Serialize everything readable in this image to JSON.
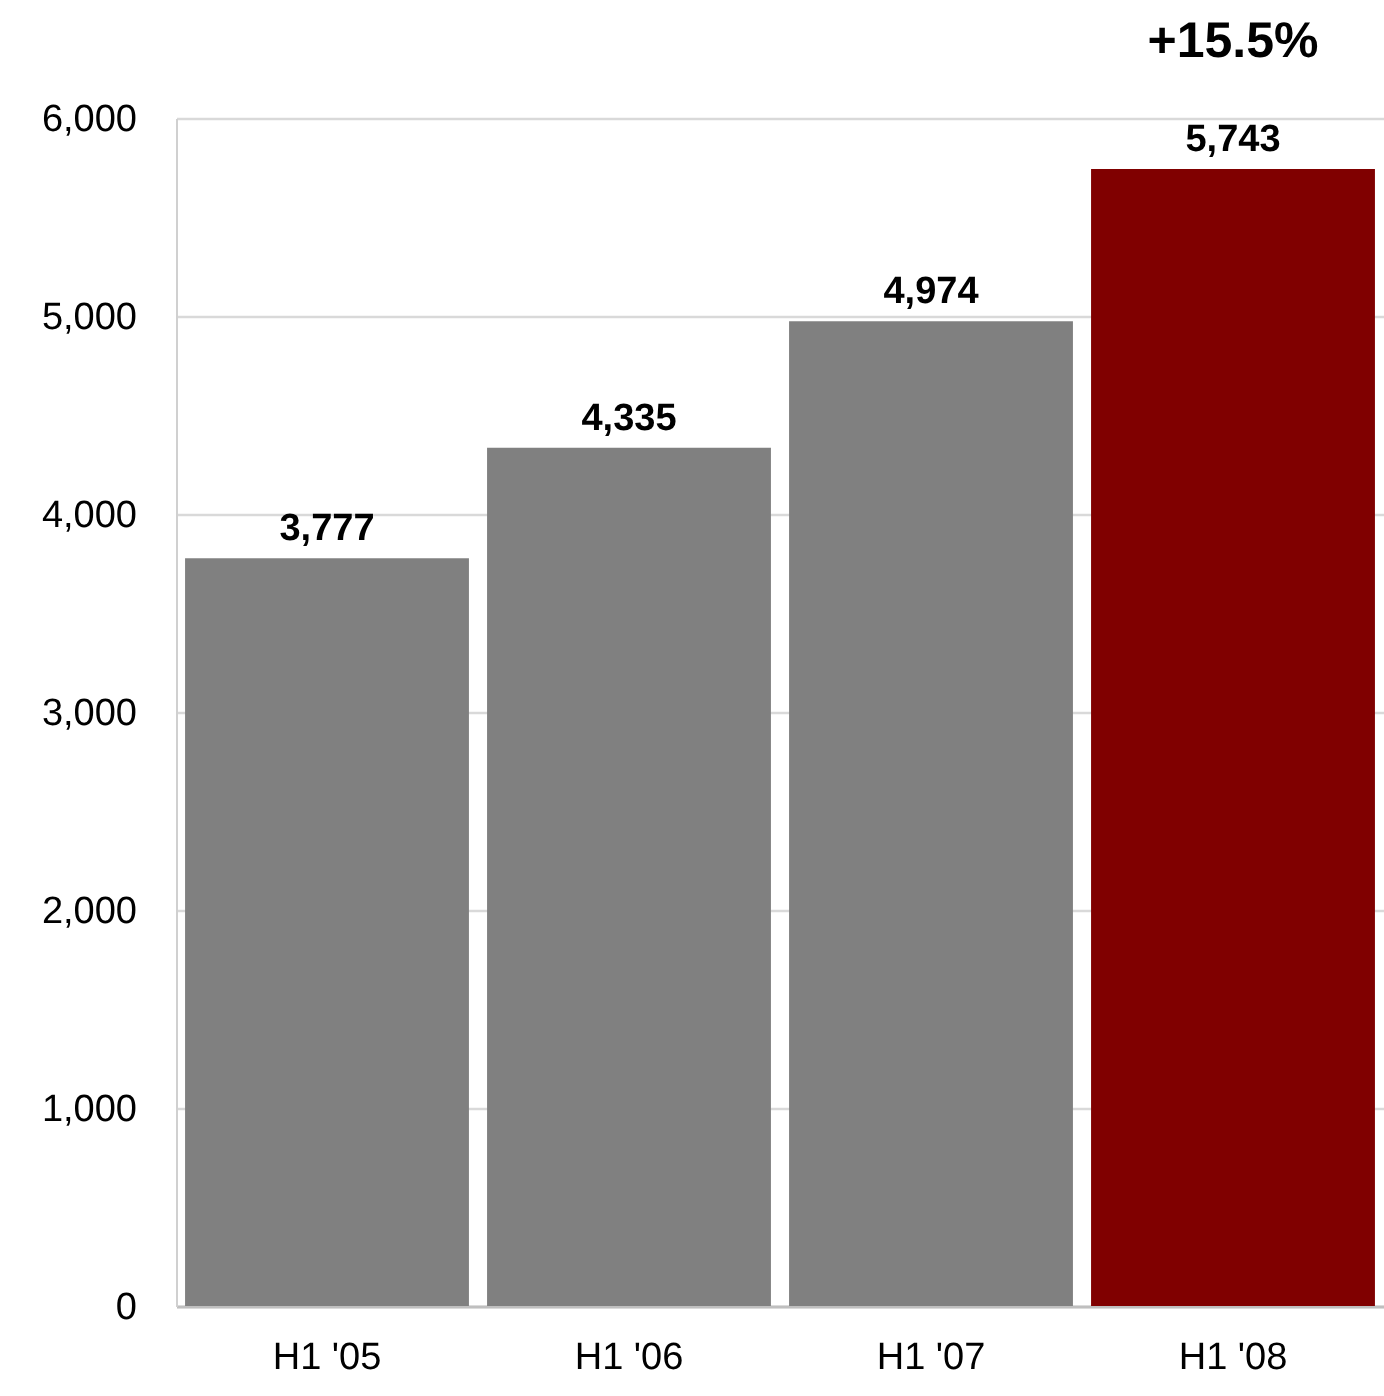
{
  "chart_data": {
    "type": "bar",
    "categories": [
      "H1 '05",
      "H1 '06",
      "H1 '07",
      "H1 '08"
    ],
    "values": [
      3777,
      4335,
      4974,
      5743
    ],
    "value_labels": [
      "3,777",
      "4,335",
      "4,974",
      "5,743"
    ],
    "colors": [
      "#808080",
      "#808080",
      "#808080",
      "#800000"
    ],
    "ylim": [
      0,
      6000
    ],
    "yticks": [
      0,
      {
        "value": 1000,
        "label": "1,000"
      },
      {
        "value": 2000,
        "label": "2,000"
      },
      {
        "value": 3000,
        "label": "3,000"
      },
      {
        "value": 4000,
        "label": "4,000"
      },
      {
        "value": 5000,
        "label": "5,000"
      },
      {
        "value": 6000,
        "label": "6,000"
      }
    ],
    "grid": "y",
    "annotations": [
      {
        "text": "+15.5%",
        "x": "H1 '08",
        "y": 5743
      }
    ]
  }
}
